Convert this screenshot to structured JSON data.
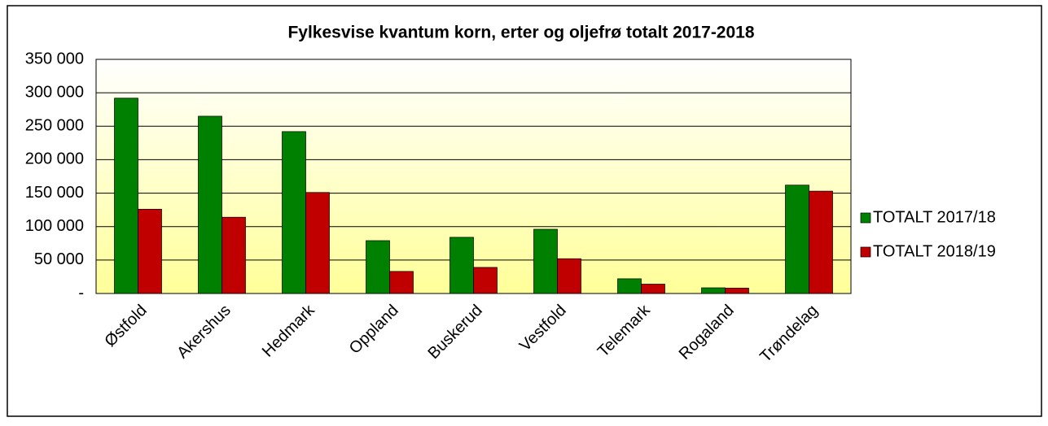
{
  "chart_data": {
    "type": "bar",
    "title": "Fylkesvise kvantum korn, erter og oljefrø totalt 2017-2018",
    "categories": [
      "Østfold",
      "Akershus",
      "Hedmark",
      "Oppland",
      "Buskerud",
      "Vestfold",
      "Telemark",
      "Rogaland",
      "Trøndelag"
    ],
    "series": [
      {
        "name": "TOTALT 2017/18",
        "color": "#008000",
        "values": [
          292000,
          265000,
          242000,
          79000,
          84000,
          96000,
          22000,
          8500,
          162000
        ]
      },
      {
        "name": "TOTALT 2018/19",
        "color": "#c00000",
        "values": [
          126000,
          114000,
          151000,
          33000,
          39000,
          52000,
          14000,
          8000,
          153000
        ]
      }
    ],
    "ylim": [
      0,
      350000
    ],
    "yticks": [
      {
        "value": 0,
        "label": "-"
      },
      {
        "value": 50000,
        "label": "50 000"
      },
      {
        "value": 100000,
        "label": "100 000"
      },
      {
        "value": 150000,
        "label": "150 000"
      },
      {
        "value": 200000,
        "label": "200 000"
      },
      {
        "value": 250000,
        "label": "250 000"
      },
      {
        "value": 300000,
        "label": "300 000"
      },
      {
        "value": 350000,
        "label": "350 000"
      }
    ],
    "grid": true,
    "legend": "right"
  }
}
